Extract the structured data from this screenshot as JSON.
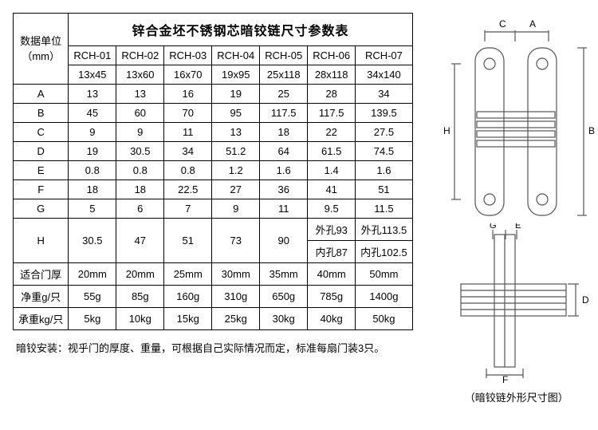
{
  "table": {
    "title": "锌合金坯不锈钢芯暗铰链尺寸参数表",
    "unit_l1": "数据单位",
    "unit_l2": "（mm）",
    "models": [
      "RCH-01",
      "RCH-02",
      "RCH-03",
      "RCH-04",
      "RCH-05",
      "RCH-06",
      "RCH-07"
    ],
    "sizes": [
      "13x45",
      "13x60",
      "16x70",
      "19x95",
      "25x118",
      "28x118",
      "34x140"
    ],
    "rows_simple": {
      "A": [
        "13",
        "13",
        "16",
        "19",
        "25",
        "28",
        "34"
      ],
      "B": [
        "45",
        "60",
        "70",
        "95",
        "117.5",
        "117.5",
        "139.5"
      ],
      "C": [
        "9",
        "9",
        "11",
        "13",
        "18",
        "22",
        "27.5"
      ],
      "D": [
        "19",
        "30.5",
        "34",
        "51.2",
        "64",
        "61.5",
        "74.5"
      ],
      "E": [
        "0.8",
        "0.8",
        "0.8",
        "1.2",
        "1.6",
        "1.4",
        "1.6"
      ],
      "F": [
        "18",
        "18",
        "22.5",
        "27",
        "36",
        "41",
        "51"
      ],
      "G": [
        "5",
        "6",
        "7",
        "9",
        "11",
        "9.5",
        "11.5"
      ]
    },
    "H": {
      "label": "H",
      "v1to5": [
        "30.5",
        "47",
        "51",
        "73",
        "90"
      ],
      "c6_top": "外孔93",
      "c6_bot": "内孔87",
      "c7_top": "外孔113.5",
      "c7_bot": "内孔102.5"
    },
    "door": {
      "label": "适合门厚",
      "vals": [
        "20mm",
        "20mm",
        "25mm",
        "30mm",
        "35mm",
        "40mm",
        "50mm"
      ]
    },
    "net": {
      "label": "净重g/只",
      "vals": [
        "55g",
        "85g",
        "160g",
        "310g",
        "650g",
        "785g",
        "1400g"
      ]
    },
    "load": {
      "label": "承重kg/只",
      "vals": [
        "5kg",
        "10kg",
        "15kg",
        "25kg",
        "30kg",
        "40kg",
        "50kg"
      ]
    },
    "footer": "暗铰安装：视乎门的厚度、重量，可根据自己实际情况而定，标准每扇门装3只。"
  },
  "diagram": {
    "caption": "（暗铰链外形尺寸图）",
    "labels": {
      "A": "A",
      "B": "B",
      "C": "C",
      "D": "D",
      "E": "E",
      "F": "F",
      "G": "G",
      "H": "H"
    }
  }
}
